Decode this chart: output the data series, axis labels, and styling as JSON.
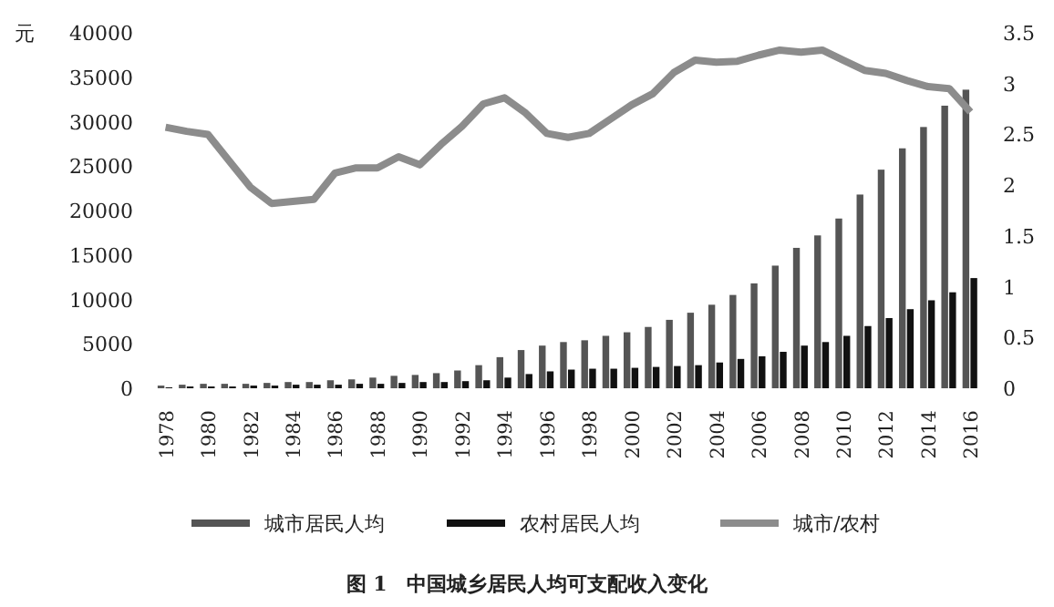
{
  "chart_data": {
    "type": "bar",
    "title": "图 1　中国城乡居民人均可支配收入变化",
    "ylabel": "元",
    "categories": [
      "1978",
      null,
      "1980",
      null,
      "1982",
      null,
      "1984",
      null,
      "1986",
      null,
      "1988",
      null,
      "1990",
      null,
      "1992",
      null,
      "1994",
      null,
      "1996",
      null,
      "1998",
      null,
      "2000",
      null,
      "2002",
      null,
      "2004",
      null,
      "2006",
      null,
      "2008",
      null,
      "2010",
      null,
      "2012",
      null,
      "2014",
      null,
      "2016"
    ],
    "series": [
      {
        "name": "城市居民人均",
        "color": "#555555",
        "values": [
          300,
          400,
          500,
          500,
          500,
          600,
          700,
          700,
          900,
          1000,
          1200,
          1400,
          1500,
          1700,
          2000,
          2600,
          3500,
          4300,
          4800,
          5200,
          5400,
          5900,
          6300,
          6900,
          7700,
          8500,
          9400,
          10500,
          11800,
          13800,
          15800,
          17200,
          19100,
          21800,
          24600,
          27000,
          29400,
          31800,
          33600
        ]
      },
      {
        "name": "农村居民人均",
        "color": "#111111",
        "values": [
          100,
          200,
          200,
          200,
          300,
          300,
          400,
          400,
          400,
          500,
          500,
          600,
          700,
          700,
          800,
          900,
          1200,
          1600,
          1900,
          2100,
          2200,
          2200,
          2300,
          2400,
          2500,
          2600,
          2900,
          3300,
          3600,
          4100,
          4800,
          5200,
          5900,
          7000,
          7900,
          8900,
          9900,
          10800,
          12400
        ]
      },
      {
        "name": "城市/农村",
        "type": "line",
        "axis": "y2",
        "color": "#8c8c8c",
        "values": [
          2.57,
          2.53,
          2.5,
          2.24,
          1.98,
          1.82,
          1.84,
          1.86,
          2.12,
          2.17,
          2.17,
          2.28,
          2.2,
          2.4,
          2.58,
          2.8,
          2.86,
          2.71,
          2.51,
          2.47,
          2.51,
          2.65,
          2.79,
          2.9,
          3.11,
          3.23,
          3.21,
          3.22,
          3.28,
          3.33,
          3.31,
          3.33,
          3.23,
          3.13,
          3.1,
          3.03,
          2.97,
          2.95,
          2.72
        ]
      }
    ],
    "ylim": [
      0,
      40000
    ],
    "yticks": [
      0,
      5000,
      10000,
      15000,
      20000,
      25000,
      30000,
      35000,
      40000
    ],
    "y2lim": [
      0,
      3.5
    ],
    "y2ticks": [
      0,
      0.5,
      1,
      1.5,
      2,
      2.5,
      3,
      3.5
    ],
    "grid": false,
    "legend": "bottom"
  }
}
